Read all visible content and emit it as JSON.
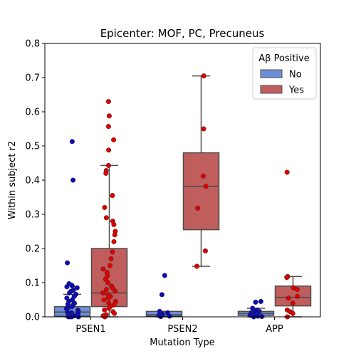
{
  "chart_data": {
    "type": "box",
    "title": "Epicenter: MOF, PC, Precuneus",
    "xlabel": "Mutation Type",
    "ylabel": "Within subject r2",
    "ylim": [
      0,
      0.8
    ],
    "yticks": [
      0.0,
      0.1,
      0.2,
      0.3,
      0.4,
      0.5,
      0.6,
      0.7,
      0.8
    ],
    "ytick_labels": [
      "0.0",
      "0.1",
      "0.2",
      "0.3",
      "0.4",
      "0.5",
      "0.6",
      "0.7",
      "0.8"
    ],
    "categories": [
      "PSEN1",
      "PSEN2",
      "APP"
    ],
    "legend": {
      "title": "Aβ Positive",
      "position": "top-right",
      "entries": [
        {
          "label": "No",
          "color": "#6e8fd8"
        },
        {
          "label": "Yes",
          "color": "#c05d5d"
        }
      ]
    },
    "colors": {
      "no_box": "#6e8fd8",
      "yes_box": "#c05d5d",
      "no_point": "#0a0ab4",
      "yes_point": "#e00000",
      "whisker": "#4d4d4d"
    },
    "series": [
      {
        "name": "No",
        "boxes": [
          {
            "category": "PSEN1",
            "whisker_low": 0.0,
            "q1": 0.002,
            "median": 0.014,
            "q3": 0.03,
            "whisker_high": 0.066
          },
          {
            "category": "PSEN2",
            "whisker_low": 0.0,
            "q1": 0.002,
            "median": 0.006,
            "q3": 0.016,
            "whisker_high": 0.016
          },
          {
            "category": "APP",
            "whisker_low": 0.0,
            "q1": 0.004,
            "median": 0.01,
            "q3": 0.016,
            "whisker_high": 0.025
          }
        ],
        "points": [
          {
            "category": "PSEN1",
            "values": [
              0.513,
              0.4,
              0.158,
              0.097,
              0.093,
              0.09,
              0.088,
              0.085,
              0.078,
              0.075,
              0.07,
              0.066,
              0.06,
              0.055,
              0.05,
              0.045,
              0.04,
              0.037,
              0.034,
              0.03,
              0.027,
              0.024,
              0.02,
              0.017,
              0.014,
              0.012,
              0.01,
              0.008,
              0.006,
              0.004,
              0.003,
              0.002,
              0.001,
              0.0,
              0.0,
              0.0
            ]
          },
          {
            "category": "PSEN2",
            "values": [
              0.121,
              0.065,
              0.016,
              0.012,
              0.009,
              0.006,
              0.004,
              0.002,
              0.001
            ]
          },
          {
            "category": "APP",
            "values": [
              0.045,
              0.043,
              0.025,
              0.02,
              0.018,
              0.016,
              0.014,
              0.012,
              0.01,
              0.008,
              0.007,
              0.005,
              0.004,
              0.003,
              0.002,
              0.001,
              0.0
            ]
          }
        ]
      },
      {
        "name": "Yes",
        "boxes": [
          {
            "category": "PSEN1",
            "whisker_low": 0.0,
            "q1": 0.03,
            "median": 0.07,
            "q3": 0.2,
            "whisker_high": 0.443
          },
          {
            "category": "PSEN2",
            "whisker_low": 0.148,
            "q1": 0.255,
            "median": 0.382,
            "q3": 0.48,
            "whisker_high": 0.705
          },
          {
            "category": "APP",
            "whisker_low": 0.0,
            "q1": 0.032,
            "median": 0.057,
            "q3": 0.09,
            "whisker_high": 0.118
          }
        ],
        "points": [
          {
            "category": "PSEN1",
            "values": [
              0.63,
              0.588,
              0.557,
              0.518,
              0.488,
              0.443,
              0.428,
              0.42,
              0.355,
              0.32,
              0.29,
              0.28,
              0.27,
              0.25,
              0.24,
              0.22,
              0.19,
              0.17,
              0.15,
              0.14,
              0.13,
              0.12,
              0.11,
              0.1,
              0.09,
              0.085,
              0.08,
              0.075,
              0.07,
              0.065,
              0.06,
              0.055,
              0.05,
              0.045,
              0.04,
              0.035,
              0.03,
              0.025,
              0.02,
              0.015,
              0.01,
              0.006,
              0.003,
              0.0
            ]
          },
          {
            "category": "PSEN2",
            "values": [
              0.705,
              0.55,
              0.412,
              0.382,
              0.318,
              0.193,
              0.148
            ]
          },
          {
            "category": "APP",
            "values": [
              0.423,
              0.118,
              0.115,
              0.085,
              0.08,
              0.06,
              0.055,
              0.04,
              0.02,
              0.015,
              0.01,
              0.0
            ]
          }
        ]
      }
    ]
  }
}
